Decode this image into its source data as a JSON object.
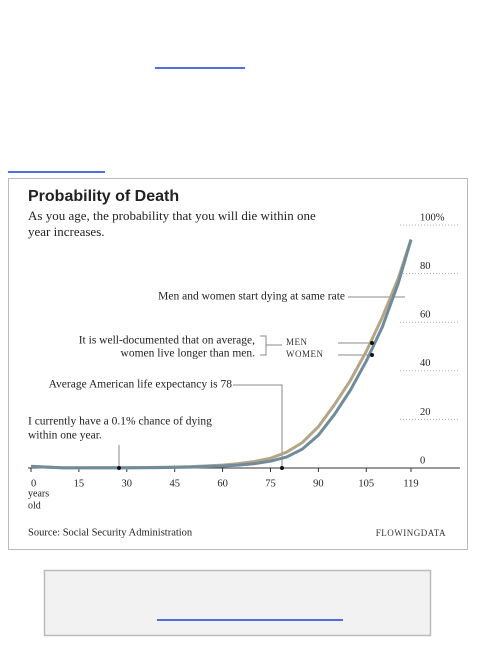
{
  "chart_data": {
    "type": "line",
    "title": "Probability of Death",
    "subtitle": [
      "As you age, the probability that you will die within one",
      "year increases."
    ],
    "x": [
      0,
      10,
      20,
      30,
      40,
      50,
      60,
      65,
      70,
      75,
      80,
      85,
      90,
      95,
      100,
      105,
      110,
      115,
      119
    ],
    "series": [
      {
        "name": "MEN",
        "color": "#b3a586",
        "values": [
          0.7,
          0.1,
          0.15,
          0.15,
          0.25,
          0.55,
          1.2,
          1.8,
          2.7,
          4,
          6.5,
          10.5,
          17,
          26,
          36,
          48,
          62,
          78,
          94
        ]
      },
      {
        "name": "WOMEN",
        "color": "#6f8b9c",
        "values": [
          0.6,
          0.05,
          0.05,
          0.07,
          0.15,
          0.35,
          0.8,
          1.2,
          1.8,
          2.8,
          4.5,
          7.8,
          13.5,
          22,
          32,
          44,
          58,
          76,
          94
        ]
      }
    ],
    "xlim": [
      0,
      119
    ],
    "xticks": [
      0,
      15,
      30,
      45,
      60,
      75,
      90,
      105,
      119
    ],
    "x_label": [
      "years",
      "old"
    ],
    "ylim": [
      0,
      100
    ],
    "yticks": [
      0,
      20,
      40,
      60,
      80,
      {
        "value": 100,
        "label": "100%"
      }
    ],
    "annotations": {
      "same_rate": "Men and women start dying at same rate",
      "longer": [
        "It is well-documented that on average,",
        "women live longer than men."
      ],
      "life_expectancy": "Average American life expectancy is 78",
      "chance": [
        "I currently have a 0.1% chance of dying",
        "within one year."
      ]
    },
    "source": "Source: Social Security Administration",
    "credit": "FLOWINGDATA"
  }
}
